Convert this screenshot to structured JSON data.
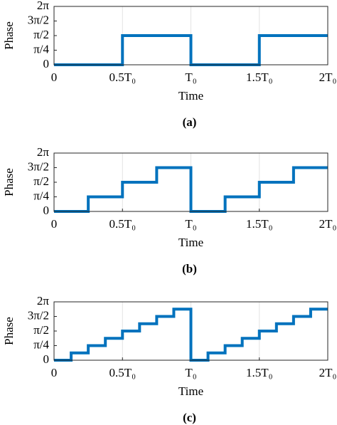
{
  "chart_data": [
    {
      "type": "line",
      "caption": "(a)",
      "xlabel": "Time",
      "ylabel": "Phase",
      "color": "#0072bd",
      "grid": "x",
      "xlim": [
        0,
        2
      ],
      "ylim": [
        0,
        4
      ],
      "xticks": [
        0,
        {
          "value": 0.5,
          "label": "0.5T₀"
        },
        {
          "value": 1,
          "label": "T₀"
        },
        {
          "value": 1.5,
          "label": "1.5T₀"
        },
        {
          "value": 2,
          "label": "2T₀"
        }
      ],
      "yticks": [
        0,
        {
          "value": 1,
          "label": "π/4"
        },
        {
          "value": 2,
          "label": "π/2"
        },
        {
          "value": 3,
          "label": "3π/2"
        },
        {
          "value": 4,
          "label": "2π"
        }
      ],
      "x": [
        0,
        0.5,
        0.5,
        1,
        1,
        1.5,
        1.5,
        2
      ],
      "values": [
        0,
        0,
        2,
        2,
        0,
        0,
        2,
        2
      ]
    },
    {
      "type": "line",
      "caption": "(b)",
      "xlabel": "Time",
      "ylabel": "Phase",
      "color": "#0072bd",
      "grid": "x",
      "xlim": [
        0,
        2
      ],
      "ylim": [
        0,
        4
      ],
      "xticks": [
        0,
        {
          "value": 0.5,
          "label": "0.5T₀"
        },
        {
          "value": 1,
          "label": "T₀"
        },
        {
          "value": 1.5,
          "label": "1.5T₀"
        },
        {
          "value": 2,
          "label": "2T₀"
        }
      ],
      "yticks": [
        0,
        {
          "value": 1,
          "label": "π/4"
        },
        {
          "value": 2,
          "label": "π/2"
        },
        {
          "value": 3,
          "label": "3π/2"
        },
        {
          "value": 4,
          "label": "2π"
        }
      ],
      "x": [
        0,
        0.25,
        0.25,
        0.5,
        0.5,
        0.75,
        0.75,
        1,
        1,
        1.25,
        1.25,
        1.5,
        1.5,
        1.75,
        1.75,
        2
      ],
      "values": [
        0,
        0,
        1,
        1,
        2,
        2,
        3,
        3,
        0,
        0,
        1,
        1,
        2,
        2,
        3,
        3
      ]
    },
    {
      "type": "line",
      "caption": "(c)",
      "xlabel": "Time",
      "ylabel": "Phase",
      "color": "#0072bd",
      "grid": "x",
      "xlim": [
        0,
        2
      ],
      "ylim": [
        0,
        4
      ],
      "xticks": [
        0,
        {
          "value": 0.5,
          "label": "0.5T₀"
        },
        {
          "value": 1,
          "label": "T₀"
        },
        {
          "value": 1.5,
          "label": "1.5T₀"
        },
        {
          "value": 2,
          "label": "2T₀"
        }
      ],
      "yticks": [
        0,
        {
          "value": 1,
          "label": "π/4"
        },
        {
          "value": 2,
          "label": "π/2"
        },
        {
          "value": 3,
          "label": "3π/2"
        },
        {
          "value": 4,
          "label": "2π"
        }
      ],
      "x": [
        0,
        0.125,
        0.125,
        0.25,
        0.25,
        0.375,
        0.375,
        0.5,
        0.5,
        0.625,
        0.625,
        0.75,
        0.75,
        0.875,
        0.875,
        1,
        1,
        1.125,
        1.125,
        1.25,
        1.25,
        1.375,
        1.375,
        1.5,
        1.5,
        1.625,
        1.625,
        1.75,
        1.75,
        1.875,
        1.875,
        2
      ],
      "values": [
        0,
        0,
        0.5,
        0.5,
        1,
        1,
        1.5,
        1.5,
        2,
        2,
        2.5,
        2.5,
        3,
        3,
        3.5,
        3.5,
        0,
        0,
        0.5,
        0.5,
        1,
        1,
        1.5,
        1.5,
        2,
        2,
        2.5,
        2.5,
        3,
        3,
        3.5,
        3.5
      ]
    }
  ]
}
